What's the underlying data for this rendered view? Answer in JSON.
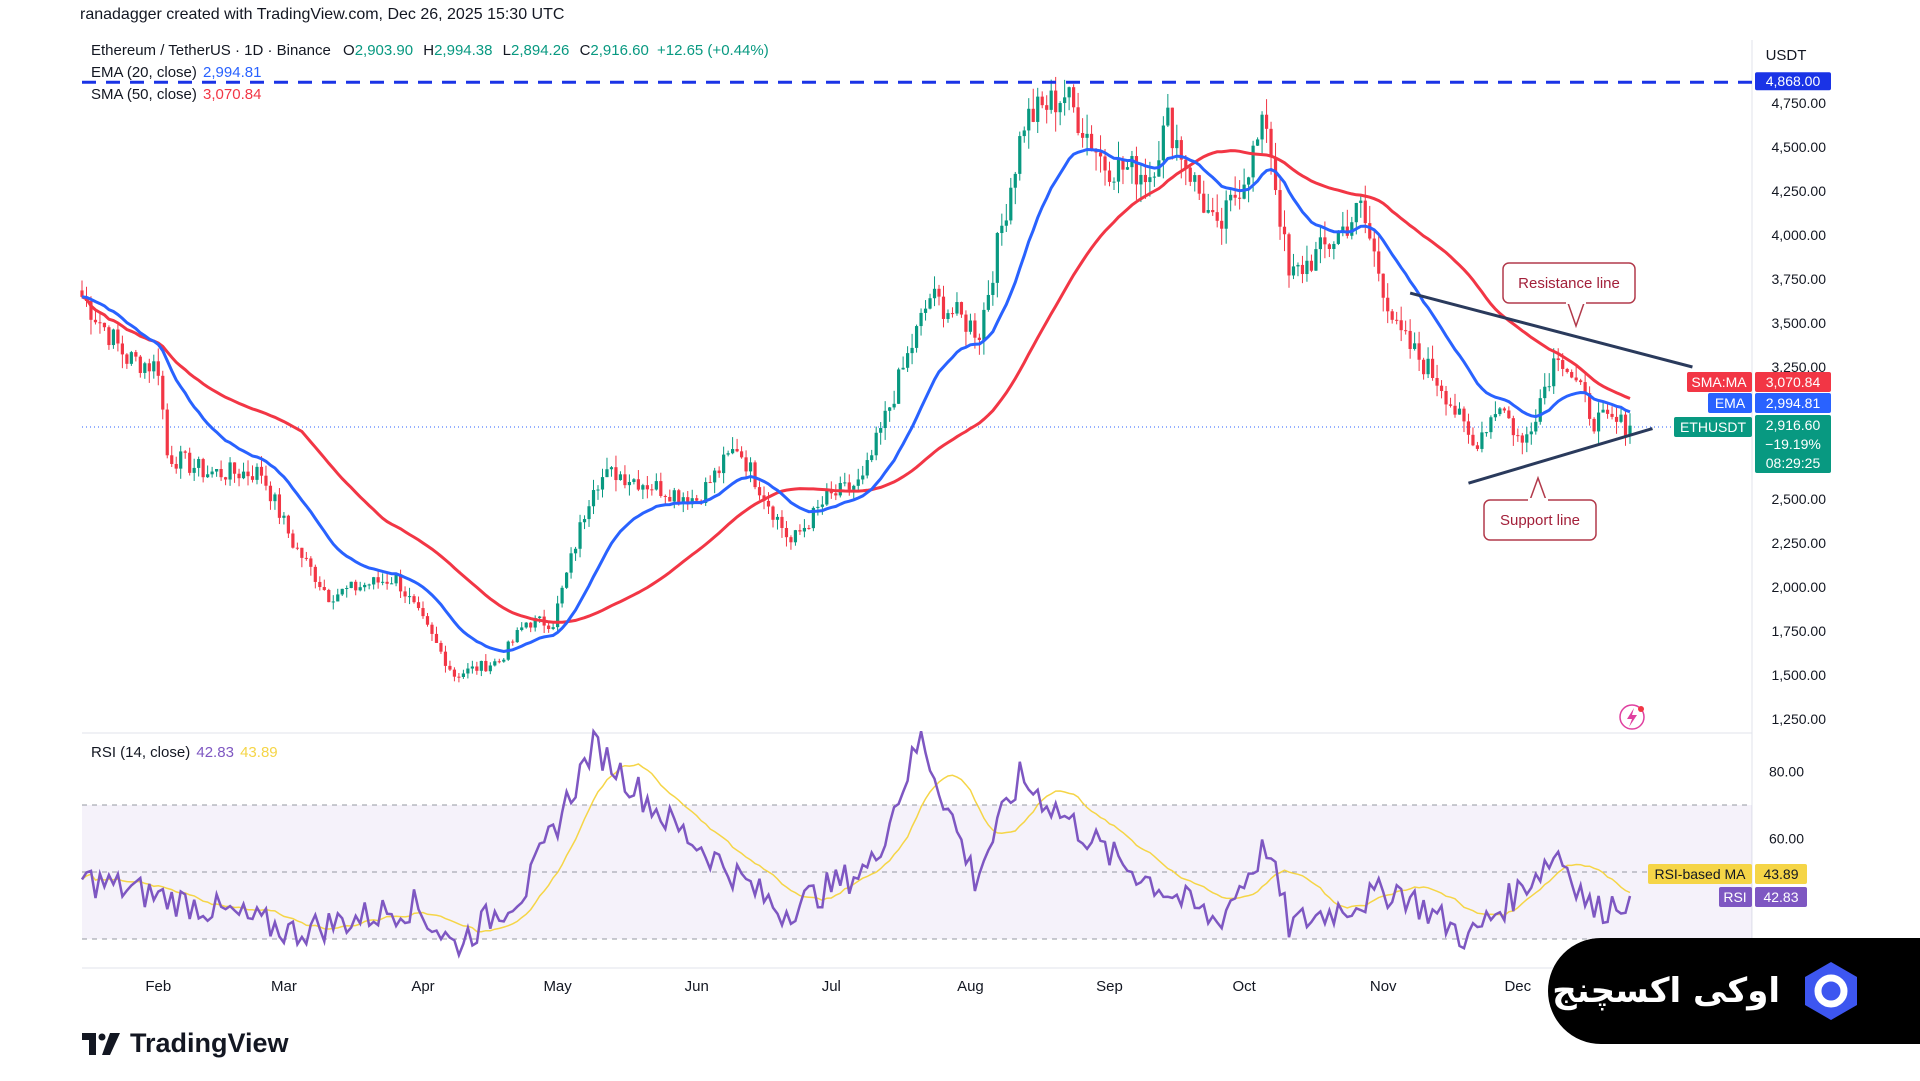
{
  "credit": "ranadagger created with TradingView.com, Dec 26, 2025 15:30 UTC",
  "legend": {
    "symbol": "Ethereum / TetherUS · 1D · Binance",
    "o_label": "O",
    "o": "2,903.90",
    "h_label": "H",
    "h": "2,994.38",
    "l_label": "L",
    "l": "2,894.26",
    "c_label": "C",
    "c": "2,916.60",
    "change": "+12.65 (+0.44%)",
    "ema_label": "EMA (20, close)",
    "ema_value": "2,994.81",
    "sma_label": "SMA (50, close)",
    "sma_value": "3,070.84",
    "rsi_label": "RSI (14, close)",
    "rsi_value": "42.83",
    "rsi_ma_value": "43.89"
  },
  "price_axis": {
    "currency": "USDT",
    "ticks": [
      "4,750.00",
      "4,500.00",
      "4,250.00",
      "4,000.00",
      "3,750.00",
      "3,500.00",
      "3,250.00",
      "2,500.00",
      "2,250.00",
      "2,000.00",
      "1,750.00",
      "1,500.00",
      "1,250.00"
    ],
    "high_tag": "4,868.00",
    "sma_tag_label": "SMA:MA",
    "sma_tag_value": "3,070.84",
    "ema_tag_label": "EMA",
    "ema_tag_value": "2,994.81",
    "last_tag_label": "ETHUSDT",
    "last_tag_value": "2,916.60",
    "last_tag_pct": "−19.19%",
    "last_tag_countdown": "08:29:25"
  },
  "rsi_axis": {
    "ticks": [
      "80.00",
      "60.00"
    ],
    "ma_tag_label": "RSI-based MA",
    "ma_tag_value": "43.89",
    "rsi_tag_label": "RSI",
    "rsi_tag_value": "42.83"
  },
  "time_axis": [
    "Feb",
    "Mar",
    "Apr",
    "May",
    "Jun",
    "Jul",
    "Aug",
    "Sep",
    "Oct",
    "Nov",
    "Dec"
  ],
  "annotations": {
    "resistance": "Resistance line",
    "support": "Support line"
  },
  "branding": {
    "tradingview": "TradingView",
    "okx": "اوکی اکسچنج"
  },
  "colors": {
    "up": "#089981",
    "down": "#f23645",
    "ema": "#2962ff",
    "sma": "#f23645",
    "rsi": "#7e57c2",
    "rsi_ma": "#f5d547",
    "high_line": "#1a33e6",
    "trendline": "#2a3a5c"
  },
  "chart_data": {
    "type": "candlestick",
    "instrument": "Ethereum / TetherUS",
    "interval": "1D",
    "exchange": "Binance",
    "price_range": [
      1250,
      4868
    ],
    "x_months": [
      "Feb",
      "Mar",
      "Apr",
      "May",
      "Jun",
      "Jul",
      "Aug",
      "Sep",
      "Oct",
      "Nov",
      "Dec"
    ],
    "x_start": "2025-01-15",
    "x_end": "2025-12-26",
    "close_series": [
      [
        "2025-01-15",
        3650
      ],
      [
        "2025-01-25",
        3300
      ],
      [
        "2025-02-01",
        3250
      ],
      [
        "2025-02-03",
        2750
      ],
      [
        "2025-02-12",
        2650
      ],
      [
        "2025-02-24",
        2650
      ],
      [
        "2025-03-03",
        2250
      ],
      [
        "2025-03-11",
        1950
      ],
      [
        "2025-03-20",
        2020
      ],
      [
        "2025-03-26",
        2050
      ],
      [
        "2025-04-01",
        1800
      ],
      [
        "2025-04-08",
        1500
      ],
      [
        "2025-04-18",
        1580
      ],
      [
        "2025-04-24",
        1800
      ],
      [
        "2025-04-30",
        1800
      ],
      [
        "2025-05-09",
        2600
      ],
      [
        "2025-05-14",
        2650
      ],
      [
        "2025-05-25",
        2550
      ],
      [
        "2025-06-01",
        2500
      ],
      [
        "2025-06-10",
        2800
      ],
      [
        "2025-06-22",
        2250
      ],
      [
        "2025-06-30",
        2500
      ],
      [
        "2025-07-08",
        2600
      ],
      [
        "2025-07-15",
        3100
      ],
      [
        "2025-07-23",
        3650
      ],
      [
        "2025-08-03",
        3450
      ],
      [
        "2025-08-13",
        4650
      ],
      [
        "2025-08-22",
        4800
      ],
      [
        "2025-08-31",
        4400
      ],
      [
        "2025-09-10",
        4350
      ],
      [
        "2025-09-14",
        4650
      ],
      [
        "2025-09-25",
        4000
      ],
      [
        "2025-10-02",
        4400
      ],
      [
        "2025-10-06",
        4650
      ],
      [
        "2025-10-11",
        3750
      ],
      [
        "2025-10-20",
        3950
      ],
      [
        "2025-10-27",
        4150
      ],
      [
        "2025-11-04",
        3450
      ],
      [
        "2025-11-14",
        3150
      ],
      [
        "2025-11-21",
        2800
      ],
      [
        "2025-11-27",
        3050
      ],
      [
        "2025-12-02",
        2800
      ],
      [
        "2025-12-10",
        3350
      ],
      [
        "2025-12-18",
        2950
      ],
      [
        "2025-12-26",
        2916.6
      ]
    ],
    "ema20_last": 2994.81,
    "sma50_last": 3070.84,
    "all_time_high_line": 4868,
    "resistance_line": [
      [
        "2025-11-07",
        3670
      ],
      [
        "2025-12-31",
        3250
      ]
    ],
    "support_line": [
      [
        "2025-11-20",
        2590
      ],
      [
        "2025-12-27",
        2900
      ]
    ],
    "rsi": {
      "period": 14,
      "last": 42.83,
      "ma_last": 43.89,
      "bands": [
        70,
        50,
        30
      ],
      "series": [
        [
          "2025-01-15",
          48
        ],
        [
          "2025-02-10",
          40
        ],
        [
          "2025-03-03",
          32
        ],
        [
          "2025-03-30",
          40
        ],
        [
          "2025-04-08",
          28
        ],
        [
          "2025-04-24",
          45
        ],
        [
          "2025-05-09",
          88
        ],
        [
          "2025-05-25",
          66
        ],
        [
          "2025-06-20",
          38
        ],
        [
          "2025-07-10",
          52
        ],
        [
          "2025-07-21",
          90
        ],
        [
          "2025-08-02",
          48
        ],
        [
          "2025-08-12",
          78
        ],
        [
          "2025-09-01",
          55
        ],
        [
          "2025-09-25",
          35
        ],
        [
          "2025-10-06",
          58
        ],
        [
          "2025-10-11",
          34
        ],
        [
          "2025-11-04",
          45
        ],
        [
          "2025-11-20",
          30
        ],
        [
          "2025-12-10",
          56
        ],
        [
          "2025-12-18",
          38
        ],
        [
          "2025-12-26",
          42.83
        ]
      ]
    }
  }
}
